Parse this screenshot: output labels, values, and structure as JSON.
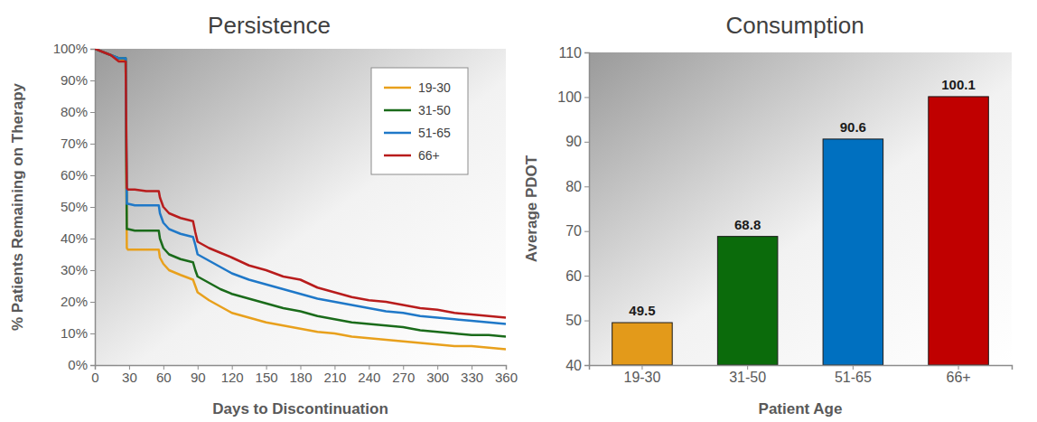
{
  "chart_data": [
    {
      "type": "line",
      "title": "Persistence",
      "x_label": "Days to Discontinuation",
      "y_label": "% Patients Remaining on Therapy",
      "x": [
        0,
        7,
        14,
        21,
        27,
        28,
        29,
        35,
        45,
        56,
        57,
        60,
        65,
        75,
        86,
        88,
        90,
        100,
        110,
        120,
        135,
        150,
        165,
        180,
        195,
        210,
        225,
        240,
        255,
        270,
        285,
        300,
        315,
        330,
        345,
        360
      ],
      "series": [
        {
          "name": "19-30",
          "color": "#e8a01c",
          "values": [
            100,
            99,
            98,
            97,
            96,
            37,
            36.5,
            36.5,
            36.5,
            36.5,
            34,
            32,
            30,
            28.5,
            27,
            25,
            23,
            20.5,
            18.5,
            16.5,
            15,
            13.5,
            12.5,
            11.5,
            10.5,
            10,
            9,
            8.5,
            8,
            7.5,
            7,
            6.5,
            6,
            6,
            5.5,
            5
          ]
        },
        {
          "name": "31-50",
          "color": "#1a6b1a",
          "values": [
            100,
            99,
            98,
            97,
            97,
            43,
            43,
            42.5,
            42.5,
            42.5,
            40,
            37,
            35,
            33.5,
            32.5,
            30,
            28,
            26,
            24,
            22.5,
            21,
            19.5,
            18,
            17,
            15.5,
            14.5,
            13.5,
            13,
            12.5,
            12,
            11,
            10.5,
            10,
            9.5,
            9.5,
            9
          ]
        },
        {
          "name": "51-65",
          "color": "#1f78c8",
          "values": [
            100,
            99,
            98,
            97,
            97,
            51,
            51,
            50.5,
            50.5,
            50.5,
            48,
            45,
            43,
            41.5,
            40.5,
            38,
            35,
            33,
            31,
            29,
            27,
            25.5,
            24,
            22.5,
            21,
            20,
            19,
            18,
            17,
            16.5,
            15.5,
            15,
            14.5,
            14,
            13.5,
            13
          ]
        },
        {
          "name": "66+",
          "color": "#b81c1c",
          "values": [
            100,
            99,
            98,
            96,
            96,
            56,
            55.5,
            55.5,
            55,
            55,
            53,
            50,
            48,
            46.5,
            45.5,
            42,
            39,
            37,
            35.5,
            34,
            31.5,
            30,
            28,
            27,
            24.5,
            23,
            21.5,
            20.5,
            20,
            19,
            18,
            17.5,
            16.5,
            16,
            15.5,
            15
          ]
        }
      ],
      "xlim": [
        0,
        360
      ],
      "xticks": [
        0,
        30,
        60,
        90,
        120,
        150,
        180,
        210,
        240,
        270,
        300,
        330,
        360
      ],
      "ylim": [
        0,
        100
      ],
      "yticks": [
        {
          "value": 0,
          "label": "0%"
        },
        {
          "value": 10,
          "label": "10%"
        },
        {
          "value": 20,
          "label": "20%"
        },
        {
          "value": 30,
          "label": "30%"
        },
        {
          "value": 40,
          "label": "40%"
        },
        {
          "value": 50,
          "label": "50%"
        },
        {
          "value": 60,
          "label": "60%"
        },
        {
          "value": 70,
          "label": "70%"
        },
        {
          "value": 80,
          "label": "80%"
        },
        {
          "value": 90,
          "label": "90%"
        },
        {
          "value": 100,
          "label": "100%"
        }
      ],
      "grid": false,
      "legend": "top-right"
    },
    {
      "type": "bar",
      "title": "Consumption",
      "x_label": "Patient Age",
      "y_label": "Average PDOT",
      "categories": [
        "19-30",
        "31-50",
        "51-65",
        "66+"
      ],
      "values": [
        49.5,
        68.8,
        90.6,
        100.1
      ],
      "colors": [
        "#e39a1a",
        "#0b6b0b",
        "#0070c0",
        "#c00000"
      ],
      "ylim": [
        40,
        110
      ],
      "yticks": [
        40,
        50,
        60,
        70,
        80,
        90,
        100,
        110
      ],
      "grid": false,
      "data_labels": true
    }
  ]
}
